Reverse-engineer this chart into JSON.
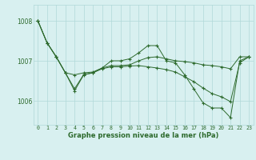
{
  "x": [
    0,
    1,
    2,
    3,
    4,
    5,
    6,
    7,
    8,
    9,
    10,
    11,
    12,
    13,
    14,
    15,
    16,
    17,
    18,
    19,
    20,
    21,
    22,
    23
  ],
  "line1": [
    1008.0,
    1007.45,
    1007.1,
    1006.7,
    1006.65,
    1006.7,
    1006.72,
    1006.82,
    1006.88,
    1006.88,
    1006.9,
    1007.0,
    1007.08,
    1007.1,
    1007.05,
    1007.0,
    1006.98,
    1006.95,
    1006.9,
    1006.88,
    1006.85,
    1006.8,
    1007.1,
    1007.1
  ],
  "line2": [
    1008.0,
    1007.45,
    1007.1,
    1006.7,
    1006.25,
    1006.65,
    1006.7,
    1006.82,
    1007.0,
    1007.0,
    1007.05,
    1007.2,
    1007.38,
    1007.38,
    1007.0,
    1006.95,
    1006.65,
    1006.3,
    1005.95,
    1005.82,
    1005.82,
    1005.58,
    1007.0,
    1007.1
  ],
  "line3": [
    1008.0,
    1007.45,
    1007.1,
    1006.7,
    1006.3,
    1006.66,
    1006.7,
    1006.8,
    1006.85,
    1006.85,
    1006.87,
    1006.88,
    1006.85,
    1006.82,
    1006.78,
    1006.72,
    1006.6,
    1006.48,
    1006.32,
    1006.18,
    1006.1,
    1005.98,
    1006.95,
    1007.1
  ],
  "line_color": "#2d6a2d",
  "bg_color": "#d8f0f0",
  "grid_color": "#b0d8d8",
  "label_color": "#2d6a2d",
  "ylabel_ticks": [
    1006,
    1007,
    1008
  ],
  "xlabel": "Graphe pression niveau de la mer (hPa)",
  "ylim": [
    1005.4,
    1008.4
  ],
  "xlim": [
    -0.5,
    23.5
  ]
}
